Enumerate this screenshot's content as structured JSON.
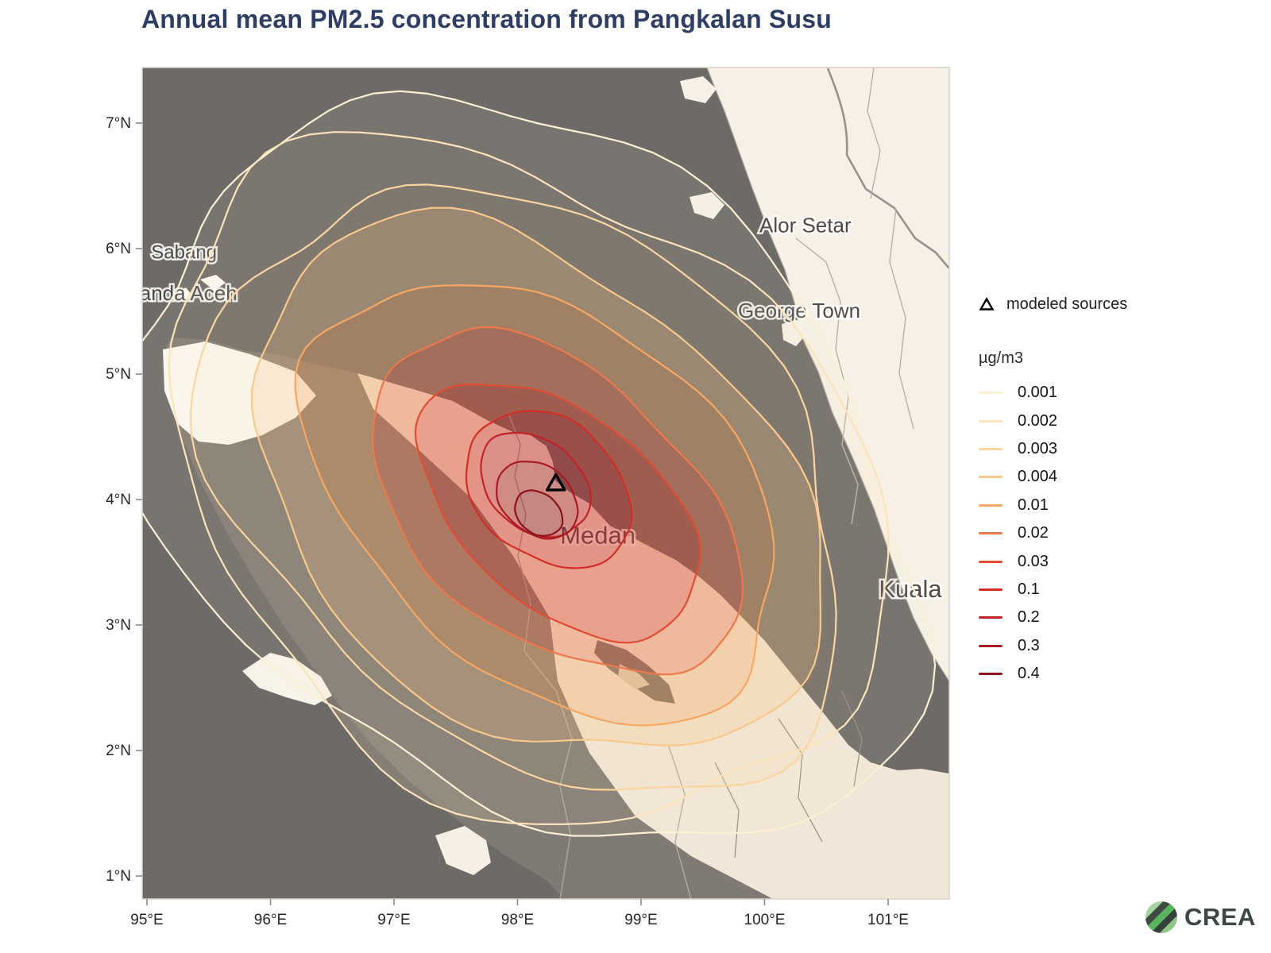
{
  "title": "Annual mean PM2.5 concentration from Pangkalan Susu",
  "axes": {
    "x_ticks": [
      {
        "label": "95°E",
        "lon": 95
      },
      {
        "label": "96°E",
        "lon": 96
      },
      {
        "label": "97°E",
        "lon": 97
      },
      {
        "label": "98°E",
        "lon": 98
      },
      {
        "label": "99°E",
        "lon": 99
      },
      {
        "label": "100°E",
        "lon": 100
      },
      {
        "label": "101°E",
        "lon": 101
      }
    ],
    "y_ticks": [
      {
        "label": "7°N",
        "lat": 7
      },
      {
        "label": "6°N",
        "lat": 6
      },
      {
        "label": "5°N",
        "lat": 5
      },
      {
        "label": "4°N",
        "lat": 4
      },
      {
        "label": "3°N",
        "lat": 3
      },
      {
        "label": "2°N",
        "lat": 2
      },
      {
        "label": "1°N",
        "lat": 1
      }
    ]
  },
  "legend": {
    "marker_label": "modeled sources",
    "unit_label": "µg/m3"
  },
  "map": {
    "places": [
      {
        "name": "Sabang",
        "lon": 95.3,
        "lat": 5.92,
        "size": 24
      },
      {
        "name": "Banda Aceh",
        "lon": 95.28,
        "lat": 5.59,
        "size": 26
      },
      {
        "name": "Alor Setar",
        "lon": 100.33,
        "lat": 6.13,
        "size": 26
      },
      {
        "name": "George Town",
        "lon": 100.28,
        "lat": 5.45,
        "size": 26
      },
      {
        "name": "Medan",
        "lon": 98.65,
        "lat": 3.65,
        "size": 31
      },
      {
        "name": "Kuala",
        "lon": 101.18,
        "lat": 3.22,
        "size": 31
      }
    ]
  },
  "branding": {
    "logo_text": "CREA"
  },
  "chart_data": {
    "type": "contour",
    "title": "Annual mean PM2.5 concentration from Pangkalan Susu",
    "unit": "µg/m3",
    "legend_position": "right",
    "lon_range": [
      94.96,
      101.49
    ],
    "lat_range": [
      0.81,
      7.44
    ],
    "source_marker": {
      "name": "Pangkalan Susu",
      "lon": 98.31,
      "lat": 4.13
    },
    "plume_orientation_deg": 40,
    "levels": [
      {
        "value": 0.001,
        "color": "#fdf0d2",
        "band_alpha": 0.08,
        "center_lon": 98.09,
        "center_lat": 4.2,
        "semi_major_deg": 3.5,
        "semi_minor_deg": 2.55
      },
      {
        "value": 0.002,
        "color": "#fce3ba",
        "band_alpha": 0.1,
        "center_lon": 98.05,
        "center_lat": 4.13,
        "semi_major_deg": 3.18,
        "semi_minor_deg": 2.37
      },
      {
        "value": 0.003,
        "color": "#fbd5a0",
        "band_alpha": 0.13,
        "center_lon": 98.11,
        "center_lat": 4.09,
        "semi_major_deg": 2.87,
        "semi_minor_deg": 2.06
      },
      {
        "value": 0.004,
        "color": "#fac88b",
        "band_alpha": 0.32,
        "center_lon": 98.14,
        "center_lat": 4.06,
        "semi_major_deg": 2.58,
        "semi_minor_deg": 1.78
      },
      {
        "value": 0.01,
        "color": "#f7a761",
        "band_alpha": 0.38,
        "center_lon": 98.22,
        "center_lat": 4.01,
        "semi_major_deg": 2.17,
        "semi_minor_deg": 1.42
      },
      {
        "value": 0.02,
        "color": "#ee784c",
        "band_alpha": 0.42,
        "center_lon": 98.3,
        "center_lat": 3.96,
        "semi_major_deg": 1.72,
        "semi_minor_deg": 1.06
      },
      {
        "value": 0.03,
        "color": "#e14b32",
        "band_alpha": 0.45,
        "center_lon": 98.34,
        "center_lat": 3.92,
        "semi_major_deg": 1.32,
        "semi_minor_deg": 0.77
      },
      {
        "value": 0.1,
        "color": "#d32e26",
        "band_alpha": 0.45,
        "center_lon": 98.25,
        "center_lat": 4.08,
        "semi_major_deg": 0.73,
        "semi_minor_deg": 0.55
      },
      {
        "value": 0.2,
        "color": "#c22328",
        "band_alpha": 0.45,
        "center_lon": 98.14,
        "center_lat": 4.12,
        "semi_major_deg": 0.49,
        "semi_minor_deg": 0.36
      },
      {
        "value": 0.3,
        "color": "#aa1a22",
        "band_alpha": 0.45,
        "center_lon": 98.16,
        "center_lat": 4.0,
        "semi_major_deg": 0.36,
        "semi_minor_deg": 0.27
      },
      {
        "value": 0.4,
        "color": "#8e121c",
        "band_alpha": 0.45,
        "center_lon": 98.17,
        "center_lat": 3.89,
        "semi_major_deg": 0.21,
        "semi_minor_deg": 0.16
      }
    ]
  }
}
